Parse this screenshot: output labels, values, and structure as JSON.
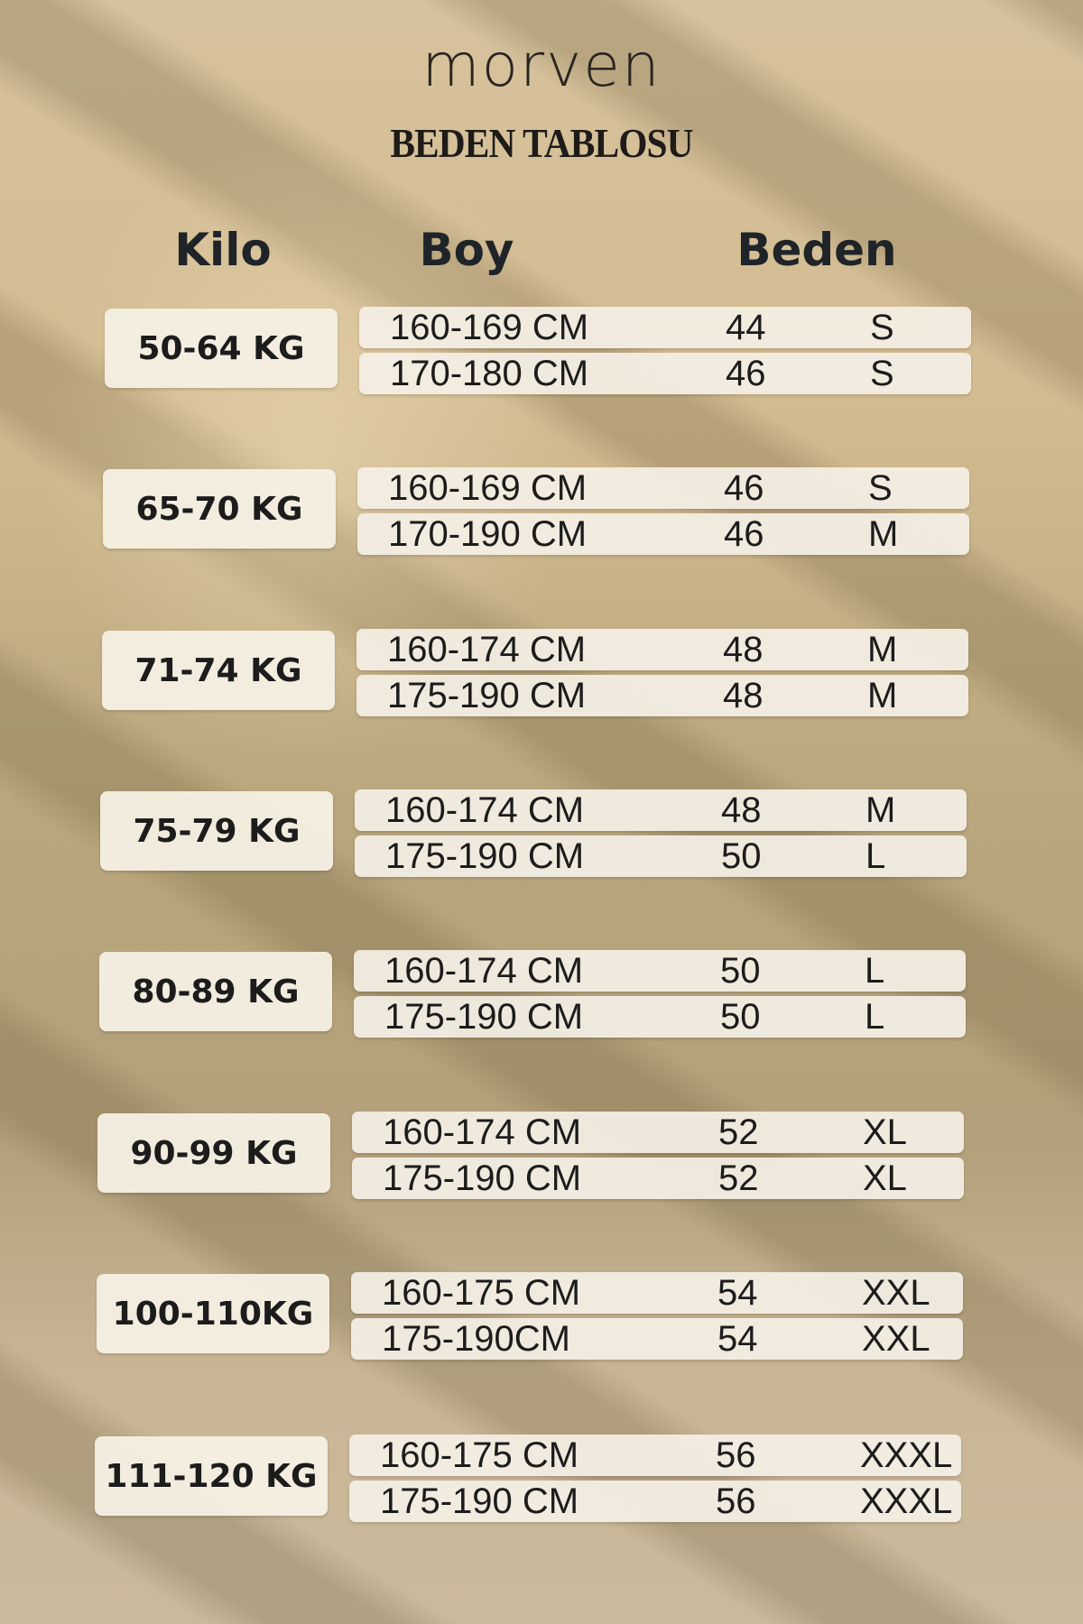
{
  "brand": "morven",
  "title": "BEDEN TABLOSU",
  "headers": {
    "kilo": "Kilo",
    "boy": "Boy",
    "beden": "Beden"
  },
  "groups": [
    {
      "kilo": "50-64 KG",
      "rows": [
        {
          "boy": "160-169 CM",
          "num": "44",
          "size": "S"
        },
        {
          "boy": "170-180 CM",
          "num": "46",
          "size": "S"
        }
      ]
    },
    {
      "kilo": "65-70 KG",
      "rows": [
        {
          "boy": "160-169 CM",
          "num": "46",
          "size": "S"
        },
        {
          "boy": "170-190 CM",
          "num": "46",
          "size": "M"
        }
      ]
    },
    {
      "kilo": "71-74 KG",
      "rows": [
        {
          "boy": "160-174 CM",
          "num": "48",
          "size": "M"
        },
        {
          "boy": "175-190 CM",
          "num": "48",
          "size": "M"
        }
      ]
    },
    {
      "kilo": "75-79 KG",
      "rows": [
        {
          "boy": "160-174 CM",
          "num": "48",
          "size": "M"
        },
        {
          "boy": "175-190 CM",
          "num": "50",
          "size": "L"
        }
      ]
    },
    {
      "kilo": "80-89 KG",
      "rows": [
        {
          "boy": "160-174 CM",
          "num": "50",
          "size": "L"
        },
        {
          "boy": "175-190 CM",
          "num": "50",
          "size": "L"
        }
      ]
    },
    {
      "kilo": "90-99 KG",
      "rows": [
        {
          "boy": "160-174 CM",
          "num": "52",
          "size": "XL"
        },
        {
          "boy": "175-190 CM",
          "num": "52",
          "size": "XL"
        }
      ]
    },
    {
      "kilo": "100-110KG",
      "rows": [
        {
          "boy": "160-175 CM",
          "num": "54",
          "size": "XXL"
        },
        {
          "boy": "175-190CM",
          "num": "54",
          "size": "XXL"
        }
      ]
    },
    {
      "kilo": "111-120 KG",
      "rows": [
        {
          "boy": "160-175 CM",
          "num": "56",
          "size": "XXXL"
        },
        {
          "boy": "175-190 CM",
          "num": "56",
          "size": "XXXL"
        }
      ]
    }
  ]
}
